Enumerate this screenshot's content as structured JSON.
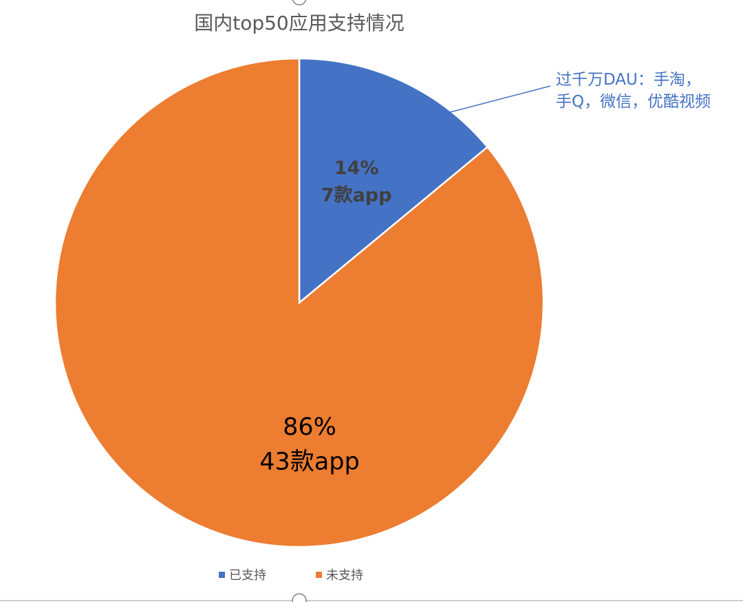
{
  "chart_data": {
    "type": "pie",
    "title": "国内top50应用支持情况",
    "slices": [
      {
        "label": "已支持",
        "value": 7,
        "percent_label": "14%",
        "count_label": "7款app",
        "color": "#4472C4"
      },
      {
        "label": "未支持",
        "value": 43,
        "percent_label": "86%",
        "count_label": "43款app",
        "color": "#ED7D31"
      }
    ],
    "annotation": {
      "lines": [
        "过千万DAU：手淘，",
        "手Q，微信，优酷视频"
      ],
      "color": "#4472C4"
    },
    "legend_position": "bottom"
  }
}
